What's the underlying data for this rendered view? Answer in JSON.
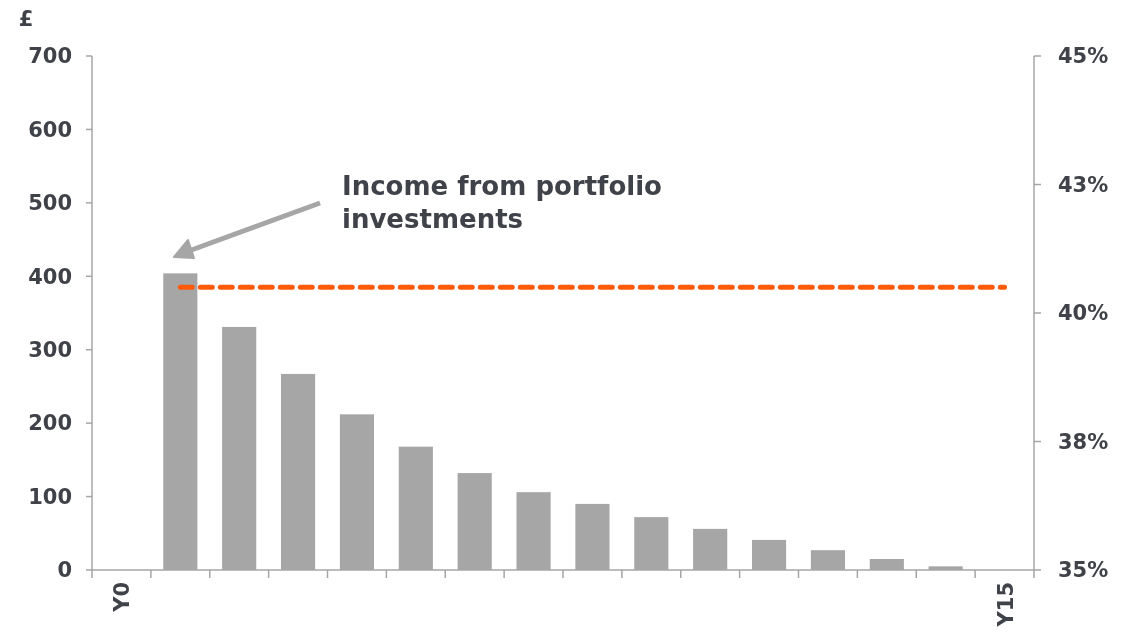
{
  "chart_data": {
    "type": "bar",
    "ylabel": "£",
    "categories": [
      "Y0",
      null,
      null,
      null,
      null,
      null,
      null,
      null,
      null,
      null,
      null,
      null,
      null,
      null,
      null,
      "Y15"
    ],
    "series": [
      {
        "color": "#a6a6a6",
        "values": [
          null,
          404,
          331,
          267,
          212,
          168,
          132,
          106,
          90,
          72,
          56,
          41,
          27,
          15,
          5,
          null
        ]
      },
      {
        "type": "line",
        "axis": "y2",
        "color": "#ff5a0a",
        "line_style": "dashed",
        "values": [
          null,
          40.5,
          40.5,
          40.5,
          40.5,
          40.5,
          40.5,
          40.5,
          40.5,
          40.5,
          40.5,
          40.5,
          40.5,
          40.5,
          40.5,
          40.5
        ]
      }
    ],
    "ylim": [
      0,
      700
    ],
    "yticks": [
      0,
      100,
      200,
      300,
      400,
      500,
      600,
      700
    ],
    "y2lim": [
      35,
      45
    ],
    "y2ticks": [
      {
        "value": 35,
        "label": "35%"
      },
      {
        "value": 37.5,
        "label": "38%"
      },
      {
        "value": 40,
        "label": "40%"
      },
      {
        "value": 42.5,
        "label": "43%"
      },
      {
        "value": 45,
        "label": "45%"
      }
    ],
    "annotations": [
      "Income from portfolio investments"
    ],
    "grid": false
  }
}
